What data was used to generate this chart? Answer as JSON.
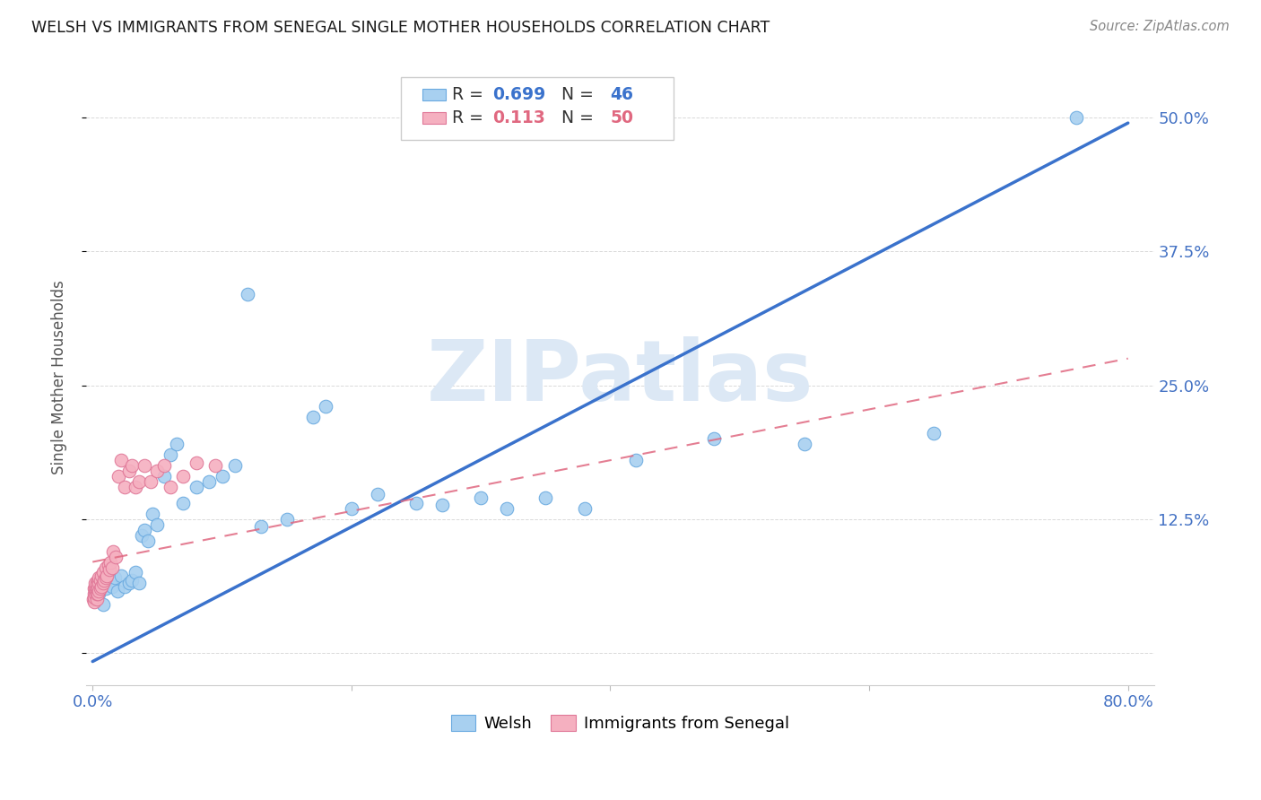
{
  "title": "WELSH VS IMMIGRANTS FROM SENEGAL SINGLE MOTHER HOUSEHOLDS CORRELATION CHART",
  "source": "Source: ZipAtlas.com",
  "ylabel": "Single Mother Households",
  "ytick_values": [
    0.0,
    0.125,
    0.25,
    0.375,
    0.5
  ],
  "ytick_labels": [
    "",
    "12.5%",
    "25.0%",
    "37.5%",
    "50.0%"
  ],
  "xlim": [
    -0.005,
    0.82
  ],
  "ylim": [
    -0.03,
    0.545
  ],
  "title_color": "#1a1a1a",
  "source_color": "#888888",
  "ylabel_color": "#555555",
  "ytick_color": "#4472c4",
  "xtick_color": "#4472c4",
  "grid_color": "#d0d0d0",
  "watermark_color": "#dce8f5",
  "welsh_color": "#a8d0f0",
  "welsh_edge_color": "#6aaae0",
  "senegal_color": "#f5b0c0",
  "senegal_edge_color": "#e07898",
  "welsh_line_color": "#3a72cc",
  "senegal_line_color": "#e06880",
  "background_color": "#ffffff",
  "welsh_R": 0.699,
  "welsh_N": 46,
  "senegal_R": 0.113,
  "senegal_N": 50,
  "welsh_line_x0": 0.0,
  "welsh_line_y0": -0.008,
  "welsh_line_x1": 0.8,
  "welsh_line_y1": 0.495,
  "senegal_line_x0": 0.0,
  "senegal_line_y0": 0.085,
  "senegal_line_x1": 0.8,
  "senegal_line_y1": 0.275,
  "welsh_pts_x": [
    0.003,
    0.005,
    0.007,
    0.008,
    0.01,
    0.012,
    0.015,
    0.017,
    0.019,
    0.022,
    0.025,
    0.028,
    0.03,
    0.033,
    0.036,
    0.038,
    0.04,
    0.043,
    0.046,
    0.05,
    0.055,
    0.06,
    0.065,
    0.07,
    0.08,
    0.09,
    0.1,
    0.11,
    0.12,
    0.13,
    0.15,
    0.17,
    0.18,
    0.2,
    0.22,
    0.25,
    0.27,
    0.3,
    0.32,
    0.35,
    0.38,
    0.42,
    0.48,
    0.55,
    0.65,
    0.76
  ],
  "welsh_pts_y": [
    0.065,
    0.055,
    0.068,
    0.045,
    0.06,
    0.075,
    0.062,
    0.07,
    0.058,
    0.072,
    0.062,
    0.065,
    0.068,
    0.075,
    0.065,
    0.11,
    0.115,
    0.105,
    0.13,
    0.12,
    0.165,
    0.185,
    0.195,
    0.14,
    0.155,
    0.16,
    0.165,
    0.175,
    0.335,
    0.118,
    0.125,
    0.22,
    0.23,
    0.135,
    0.148,
    0.14,
    0.138,
    0.145,
    0.135,
    0.145,
    0.135,
    0.18,
    0.2,
    0.195,
    0.205,
    0.5
  ],
  "senegal_pts_x": [
    0.0005,
    0.001,
    0.001,
    0.001,
    0.0015,
    0.002,
    0.002,
    0.002,
    0.0025,
    0.003,
    0.003,
    0.003,
    0.003,
    0.004,
    0.004,
    0.004,
    0.005,
    0.005,
    0.005,
    0.006,
    0.006,
    0.007,
    0.007,
    0.008,
    0.008,
    0.009,
    0.01,
    0.01,
    0.011,
    0.012,
    0.013,
    0.014,
    0.015,
    0.016,
    0.018,
    0.02,
    0.022,
    0.025,
    0.028,
    0.03,
    0.033,
    0.036,
    0.04,
    0.045,
    0.05,
    0.055,
    0.06,
    0.07,
    0.08,
    0.095
  ],
  "senegal_pts_y": [
    0.05,
    0.048,
    0.055,
    0.06,
    0.052,
    0.055,
    0.06,
    0.065,
    0.058,
    0.05,
    0.055,
    0.06,
    0.065,
    0.055,
    0.06,
    0.068,
    0.058,
    0.065,
    0.07,
    0.06,
    0.068,
    0.062,
    0.072,
    0.065,
    0.075,
    0.068,
    0.07,
    0.08,
    0.072,
    0.082,
    0.078,
    0.085,
    0.08,
    0.095,
    0.09,
    0.165,
    0.18,
    0.155,
    0.17,
    0.175,
    0.155,
    0.16,
    0.175,
    0.16,
    0.17,
    0.175,
    0.155,
    0.165,
    0.178,
    0.175
  ]
}
